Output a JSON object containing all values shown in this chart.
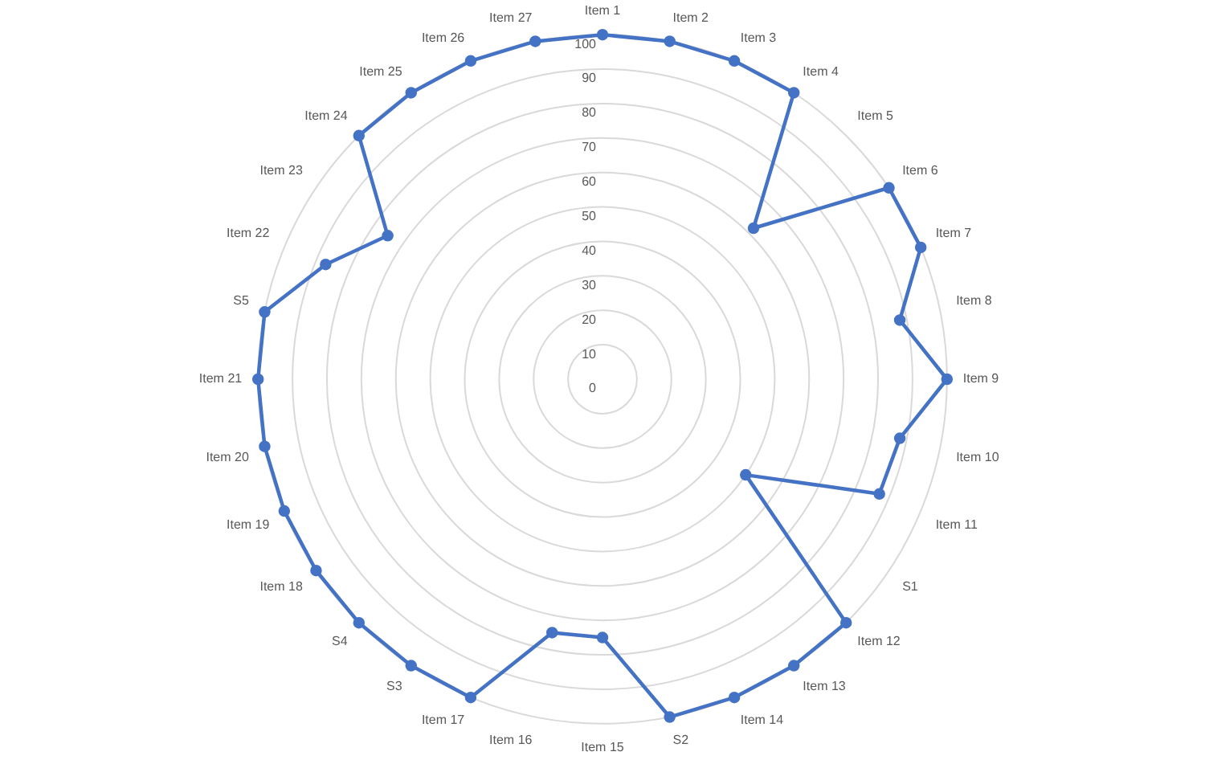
{
  "chart_data": {
    "type": "radar",
    "categories": [
      "Item 1",
      "Item 2",
      "Item 3",
      "Item 4",
      "Item 5",
      "Item 6",
      "Item 7",
      "Item 8",
      "Item 9",
      "Item 10",
      "Item 11",
      "S1",
      "Item 12",
      "Item 13",
      "Item 14",
      "S2",
      "Item 15",
      "Item 16",
      "Item 17",
      "S3",
      "S4",
      "Item 18",
      "Item 19",
      "Item 20",
      "Item 21",
      "S5",
      "Item 22",
      "Item 23",
      "Item 24",
      "Item 25",
      "Item 26",
      "Item 27"
    ],
    "series": [
      {
        "color": "#4472c4",
        "values": [
          100,
          100,
          100,
          100,
          62,
          100,
          100,
          88,
          100,
          88,
          87,
          50,
          100,
          100,
          100,
          100,
          75,
          75,
          100,
          100,
          100,
          100,
          100,
          100,
          100,
          100,
          87,
          75,
          100,
          100,
          100,
          100
        ]
      }
    ],
    "ylim": [
      0,
      100
    ],
    "yticks": [
      0,
      10,
      20,
      30,
      40,
      50,
      60,
      70,
      80,
      90,
      100
    ],
    "grid": true,
    "marker": "circle",
    "legend": false
  }
}
